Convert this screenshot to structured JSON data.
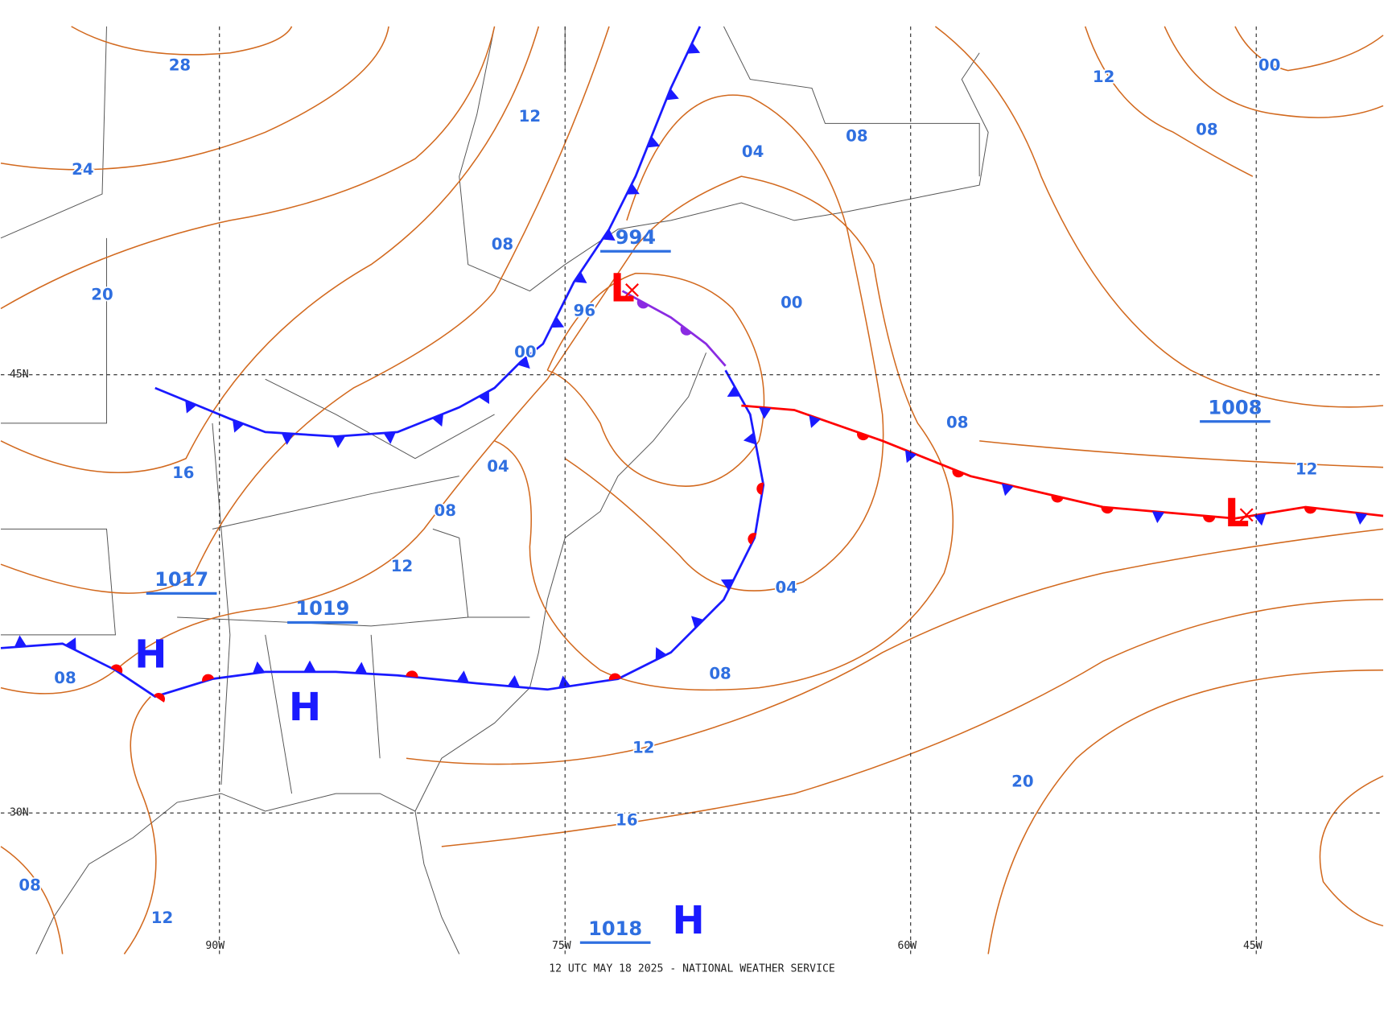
{
  "footer": "12 UTC MAY 18 2025 - NATIONAL WEATHER SERVICE",
  "grid_labels": [
    "90W",
    "75W",
    "60W",
    "45W",
    "45N",
    "30N"
  ],
  "isobar_labels": [
    "28",
    "24",
    "20",
    "16",
    "12",
    "08",
    "04",
    "00",
    "96",
    "08",
    "12",
    "00",
    "08",
    "00",
    "04",
    "08",
    "12",
    "08",
    "08",
    "12",
    "04",
    "08",
    "12",
    "16",
    "20",
    "12",
    "08"
  ],
  "centers": [
    {
      "symbol": "H",
      "pressure": "1017"
    },
    {
      "symbol": "H",
      "pressure": "1019"
    },
    {
      "symbol": "H",
      "pressure": "1018"
    },
    {
      "symbol": "L",
      "pressure": "994"
    },
    {
      "symbol": "L",
      "pressure": "1008"
    }
  ]
}
